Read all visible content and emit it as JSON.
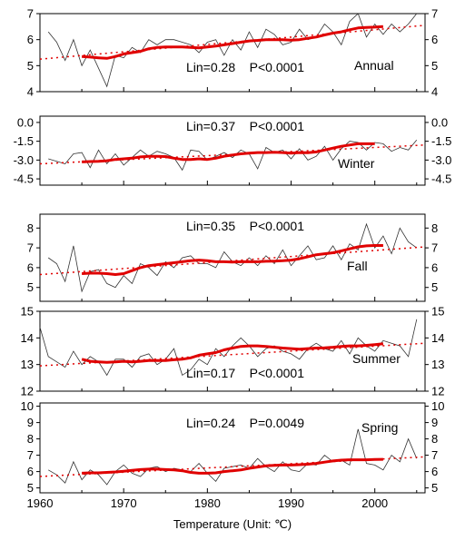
{
  "xlabel": "Temperature (Unit: ℃)",
  "x_ticks": [
    1960,
    1970,
    1980,
    1990,
    2000
  ],
  "x_range": [
    1960,
    2006
  ],
  "colors": {
    "observed": "#333333",
    "running_mean": "#e00000",
    "linear_trend": "#e00000"
  },
  "chart_data": [
    {
      "type": "line",
      "label": "Annual",
      "annotation": "Lin=0.28    P<0.0001",
      "ylim": [
        4,
        7
      ],
      "yticks": [
        4,
        5,
        6,
        7
      ],
      "tick_labels": [
        "4",
        "5",
        "6",
        "7"
      ],
      "trend": {
        "start": [
          1960,
          5.25
        ],
        "end": [
          2006,
          6.55
        ]
      },
      "series": [
        {
          "kind": "observed",
          "x": [
            1961,
            1962,
            1963,
            1964,
            1965,
            1966,
            1967,
            1968,
            1969,
            1970,
            1971,
            1972,
            1973,
            1974,
            1975,
            1976,
            1977,
            1978,
            1979,
            1980,
            1981,
            1982,
            1983,
            1984,
            1985,
            1986,
            1987,
            1988,
            1989,
            1990,
            1991,
            1992,
            1993,
            1994,
            1995,
            1996,
            1997,
            1998,
            1999,
            2000,
            2001,
            2002,
            2003,
            2004,
            2005
          ],
          "y": [
            6.3,
            5.9,
            5.2,
            6.0,
            5.0,
            5.6,
            4.9,
            4.2,
            5.4,
            5.3,
            5.7,
            5.5,
            6.0,
            5.8,
            6.0,
            6.0,
            5.9,
            5.8,
            5.5,
            5.9,
            6.0,
            5.4,
            6.0,
            5.6,
            6.3,
            5.7,
            6.4,
            6.2,
            5.8,
            5.9,
            6.4,
            6.0,
            6.1,
            6.6,
            6.3,
            5.8,
            6.7,
            7.0,
            6.1,
            6.6,
            6.2,
            6.6,
            6.3,
            6.6,
            7.0
          ]
        },
        {
          "kind": "running_mean",
          "x": [
            1965,
            1966,
            1967,
            1968,
            1969,
            1970,
            1971,
            1972,
            1973,
            1974,
            1975,
            1976,
            1977,
            1978,
            1979,
            1980,
            1981,
            1982,
            1983,
            1984,
            1985,
            1986,
            1987,
            1988,
            1989,
            1990,
            1991,
            1992,
            1993,
            1994,
            1995,
            1996,
            1997,
            1998,
            1999,
            2000,
            2001
          ],
          "y": [
            5.35,
            5.33,
            5.3,
            5.28,
            5.35,
            5.45,
            5.5,
            5.55,
            5.65,
            5.7,
            5.72,
            5.72,
            5.72,
            5.7,
            5.68,
            5.72,
            5.75,
            5.8,
            5.85,
            5.9,
            5.95,
            5.97,
            6.0,
            6.0,
            6.0,
            5.98,
            6.0,
            6.05,
            6.1,
            6.18,
            6.25,
            6.3,
            6.38,
            6.45,
            6.47,
            6.48,
            6.5
          ]
        }
      ]
    },
    {
      "type": "line",
      "label": "Winter",
      "annotation": "Lin=0.37    P<0.0001",
      "ylim": [
        -5.0,
        0.5
      ],
      "yticks": [
        0.0,
        -1.5,
        -3.0,
        -4.5
      ],
      "tick_labels": [
        "0.0",
        "-1.5",
        "-3.0",
        "-4.5"
      ],
      "trend": {
        "start": [
          1960,
          -3.3
        ],
        "end": [
          2006,
          -1.8
        ]
      },
      "series": [
        {
          "kind": "observed",
          "x": [
            1961,
            1962,
            1963,
            1964,
            1965,
            1966,
            1967,
            1968,
            1969,
            1970,
            1971,
            1972,
            1973,
            1974,
            1975,
            1976,
            1977,
            1978,
            1979,
            1980,
            1981,
            1982,
            1983,
            1984,
            1985,
            1986,
            1987,
            1988,
            1989,
            1990,
            1991,
            1992,
            1993,
            1994,
            1995,
            1996,
            1997,
            1998,
            1999,
            2000,
            2001,
            2002,
            2003,
            2004,
            2005
          ],
          "y": [
            -2.9,
            -3.1,
            -3.3,
            -2.5,
            -2.4,
            -3.6,
            -2.2,
            -3.3,
            -2.5,
            -3.4,
            -2.8,
            -2.2,
            -2.7,
            -2.3,
            -2.5,
            -2.8,
            -3.8,
            -2.2,
            -2.3,
            -3.0,
            -2.7,
            -2.4,
            -2.8,
            -2.2,
            -2.5,
            -3.7,
            -2.0,
            -2.4,
            -2.2,
            -2.9,
            -2.1,
            -3.0,
            -2.7,
            -1.9,
            -3.0,
            -2.1,
            -1.5,
            -1.6,
            -2.2,
            -1.6,
            -1.7,
            -2.3,
            -2.0,
            -2.2,
            -1.4
          ]
        },
        {
          "kind": "running_mean",
          "x": [
            1965,
            1966,
            1967,
            1968,
            1969,
            1970,
            1971,
            1972,
            1973,
            1974,
            1975,
            1976,
            1977,
            1978,
            1979,
            1980,
            1981,
            1982,
            1983,
            1984,
            1985,
            1986,
            1987,
            1988,
            1989,
            1990,
            1991,
            1992,
            1993,
            1994,
            1995,
            1996,
            1997,
            1998,
            1999,
            2000
          ],
          "y": [
            -3.15,
            -3.12,
            -3.1,
            -3.05,
            -2.95,
            -2.9,
            -2.85,
            -2.75,
            -2.7,
            -2.7,
            -2.72,
            -2.85,
            -2.95,
            -2.95,
            -2.9,
            -2.95,
            -2.85,
            -2.7,
            -2.6,
            -2.5,
            -2.45,
            -2.4,
            -2.4,
            -2.38,
            -2.4,
            -2.45,
            -2.4,
            -2.42,
            -2.35,
            -2.2,
            -2.05,
            -1.9,
            -1.8,
            -1.7,
            -1.7,
            -1.7
          ]
        }
      ]
    },
    {
      "type": "line",
      "label": "Fall",
      "annotation": "Lin=0.35    P<0.0001",
      "ylim": [
        4.3,
        8.7
      ],
      "yticks": [
        5,
        6,
        7,
        8
      ],
      "tick_labels": [
        "5",
        "6",
        "7",
        "8"
      ],
      "trend": {
        "start": [
          1960,
          5.65
        ],
        "end": [
          2006,
          7.05
        ]
      },
      "series": [
        {
          "kind": "observed",
          "x": [
            1961,
            1962,
            1963,
            1964,
            1965,
            1966,
            1967,
            1968,
            1969,
            1970,
            1971,
            1972,
            1973,
            1974,
            1975,
            1976,
            1977,
            1978,
            1979,
            1980,
            1981,
            1982,
            1983,
            1984,
            1985,
            1986,
            1987,
            1988,
            1989,
            1990,
            1991,
            1992,
            1993,
            1994,
            1995,
            1996,
            1997,
            1998,
            1999,
            2000,
            2001,
            2002,
            2003,
            2004,
            2005
          ],
          "y": [
            6.5,
            6.2,
            5.3,
            7.1,
            4.8,
            5.8,
            5.9,
            5.2,
            5.0,
            5.6,
            5.2,
            6.2,
            6.0,
            5.6,
            6.3,
            6.0,
            6.5,
            6.6,
            6.2,
            6.2,
            6.0,
            6.8,
            6.3,
            6.1,
            6.5,
            6.1,
            6.6,
            6.2,
            6.9,
            6.1,
            6.6,
            7.1,
            6.4,
            6.5,
            7.1,
            6.4,
            7.2,
            6.9,
            8.2,
            7.0,
            7.6,
            6.7,
            8.0,
            7.3,
            7.0
          ]
        },
        {
          "kind": "running_mean",
          "x": [
            1965,
            1966,
            1967,
            1968,
            1969,
            1970,
            1971,
            1972,
            1973,
            1974,
            1975,
            1976,
            1977,
            1978,
            1979,
            1980,
            1981,
            1982,
            1983,
            1984,
            1985,
            1986,
            1987,
            1988,
            1989,
            1990,
            1991,
            1992,
            1993,
            1994,
            1995,
            1996,
            1997,
            1998,
            1999,
            2000,
            2001
          ],
          "y": [
            5.7,
            5.72,
            5.72,
            5.7,
            5.65,
            5.7,
            5.85,
            6.0,
            6.1,
            6.15,
            6.2,
            6.25,
            6.3,
            6.35,
            6.38,
            6.35,
            6.3,
            6.3,
            6.28,
            6.3,
            6.3,
            6.3,
            6.32,
            6.33,
            6.35,
            6.38,
            6.45,
            6.55,
            6.65,
            6.7,
            6.75,
            6.85,
            6.95,
            7.05,
            7.1,
            7.12,
            7.12
          ]
        }
      ]
    },
    {
      "type": "line",
      "label": "Summer",
      "annotation": "Lin=0.17    P<0.0001",
      "ylim": [
        12,
        15
      ],
      "yticks": [
        12,
        13,
        14,
        15
      ],
      "tick_labels": [
        "12",
        "13",
        "14",
        "15"
      ],
      "trend": {
        "start": [
          1960,
          12.95
        ],
        "end": [
          2006,
          13.8
        ]
      },
      "series": [
        {
          "kind": "observed",
          "x": [
            1960,
            1961,
            1962,
            1963,
            1964,
            1965,
            1966,
            1967,
            1968,
            1969,
            1970,
            1971,
            1972,
            1973,
            1974,
            1975,
            1976,
            1977,
            1978,
            1979,
            1980,
            1981,
            1982,
            1983,
            1984,
            1985,
            1986,
            1987,
            1988,
            1989,
            1990,
            1991,
            1992,
            1993,
            1994,
            1995,
            1996,
            1997,
            1998,
            1999,
            2000,
            2001,
            2002,
            2003,
            2004,
            2005
          ],
          "y": [
            14.4,
            13.3,
            13.1,
            12.9,
            13.5,
            13.0,
            13.3,
            13.1,
            12.6,
            13.2,
            13.2,
            12.9,
            13.3,
            13.4,
            13.0,
            13.2,
            13.6,
            12.6,
            12.8,
            13.2,
            13.0,
            13.6,
            13.3,
            13.7,
            14.0,
            13.7,
            13.3,
            13.6,
            13.7,
            13.5,
            13.4,
            13.2,
            13.6,
            13.8,
            13.6,
            13.5,
            13.9,
            13.4,
            14.0,
            13.7,
            13.5,
            13.9,
            13.8,
            13.7,
            13.3,
            14.7
          ]
        },
        {
          "kind": "running_mean",
          "x": [
            1965,
            1966,
            1967,
            1968,
            1969,
            1970,
            1971,
            1972,
            1973,
            1974,
            1975,
            1976,
            1977,
            1978,
            1979,
            1980,
            1981,
            1982,
            1983,
            1984,
            1985,
            1986,
            1987,
            1988,
            1989,
            1990,
            1991,
            1992,
            1993,
            1994,
            1995,
            1996,
            1997,
            1998,
            1999,
            2000,
            2001
          ],
          "y": [
            13.2,
            13.12,
            13.1,
            13.08,
            13.1,
            13.12,
            13.1,
            13.12,
            13.15,
            13.15,
            13.15,
            13.18,
            13.2,
            13.25,
            13.35,
            13.4,
            13.45,
            13.55,
            13.62,
            13.68,
            13.7,
            13.7,
            13.68,
            13.65,
            13.62,
            13.6,
            13.58,
            13.6,
            13.62,
            13.63,
            13.65,
            13.68,
            13.7,
            13.7,
            13.72,
            13.75,
            13.78
          ]
        }
      ]
    },
    {
      "type": "line",
      "label": "Spring",
      "annotation": "Lin=0.24    P=0.0049",
      "ylim": [
        4.7,
        10.2
      ],
      "yticks": [
        5,
        6,
        7,
        8,
        9,
        10
      ],
      "tick_labels": [
        "5",
        "6",
        "7",
        "8",
        "9",
        "10"
      ],
      "trend": {
        "start": [
          1960,
          5.7
        ],
        "end": [
          2006,
          6.9
        ]
      },
      "series": [
        {
          "kind": "observed",
          "x": [
            1961,
            1962,
            1963,
            1964,
            1965,
            1966,
            1967,
            1968,
            1969,
            1970,
            1971,
            1972,
            1973,
            1974,
            1975,
            1976,
            1977,
            1978,
            1979,
            1980,
            1981,
            1982,
            1983,
            1984,
            1985,
            1986,
            1987,
            1988,
            1989,
            1990,
            1991,
            1992,
            1993,
            1994,
            1995,
            1996,
            1997,
            1998,
            1999,
            2000,
            2001,
            2002,
            2003,
            2004,
            2005
          ],
          "y": [
            6.1,
            5.8,
            5.3,
            6.6,
            5.5,
            6.1,
            5.8,
            5.2,
            6.0,
            6.4,
            5.9,
            5.7,
            6.2,
            6.3,
            6.0,
            6.2,
            6.1,
            6.0,
            6.5,
            5.9,
            5.4,
            6.2,
            6.3,
            6.4,
            6.2,
            6.8,
            6.3,
            6.0,
            6.6,
            6.1,
            6.0,
            6.5,
            6.4,
            7.0,
            6.6,
            6.7,
            6.4,
            8.6,
            6.5,
            6.4,
            6.1,
            7.0,
            6.6,
            8.0,
            6.8
          ]
        },
        {
          "kind": "running_mean",
          "x": [
            1965,
            1966,
            1967,
            1968,
            1969,
            1970,
            1971,
            1972,
            1973,
            1974,
            1975,
            1976,
            1977,
            1978,
            1979,
            1980,
            1981,
            1982,
            1983,
            1984,
            1985,
            1986,
            1987,
            1988,
            1989,
            1990,
            1991,
            1992,
            1993,
            1994,
            1995,
            1996,
            1997,
            1998,
            1999,
            2000,
            2001
          ],
          "y": [
            5.9,
            5.92,
            5.92,
            5.95,
            5.98,
            6.02,
            6.08,
            6.12,
            6.15,
            6.15,
            6.12,
            6.1,
            6.05,
            5.95,
            5.9,
            5.9,
            5.92,
            6.0,
            6.05,
            6.1,
            6.2,
            6.28,
            6.35,
            6.38,
            6.4,
            6.4,
            6.42,
            6.45,
            6.5,
            6.58,
            6.65,
            6.7,
            6.72,
            6.72,
            6.72,
            6.74,
            6.75
          ]
        }
      ]
    }
  ]
}
